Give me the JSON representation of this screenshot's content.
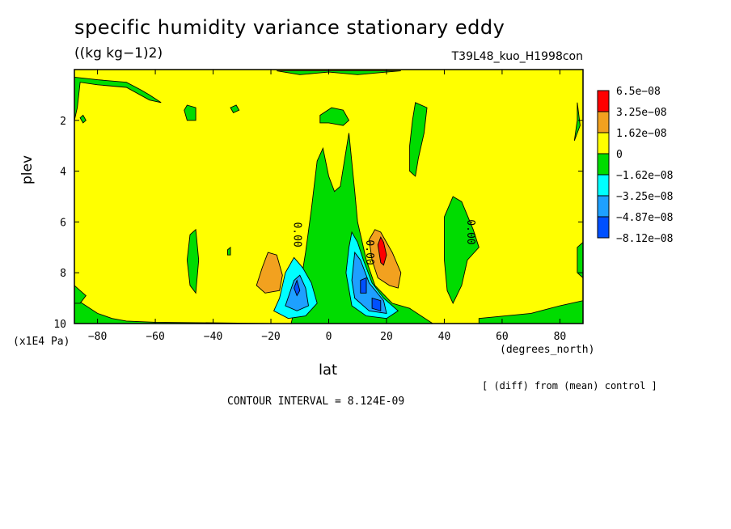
{
  "chart_data": {
    "type": "heatmap",
    "title": "specific humidity variance stationary eddy",
    "units": "((kg kg−1)2)",
    "run_label": "T39L48_kuo_H1998con",
    "xlabel": "lat",
    "x_unit": "(degrees_north)",
    "ylabel": "plev",
    "y_unit": "(x1E4 Pa)",
    "x_range": [
      -88,
      88
    ],
    "y_range": [
      0,
      10
    ],
    "y_inverted": true,
    "x_ticks": [
      -80,
      -60,
      -40,
      -20,
      0,
      20,
      40,
      60,
      80
    ],
    "y_ticks": [
      2,
      4,
      6,
      8,
      10
    ],
    "contour_interval_text": "CONTOUR INTERVAL = 8.124E-09",
    "note": "[ (diff) from (mean) control ]",
    "contour_labels": [
      {
        "text": "0.00",
        "x": -12,
        "y": 6.5
      },
      {
        "text": "0.00",
        "x": 13,
        "y": 7.2
      },
      {
        "text": "0.00",
        "x": 48,
        "y": 6.4
      }
    ],
    "legend": {
      "labels": [
        "6.5e−08",
        "3.25e−08",
        "1.62e−08",
        "0",
        "−1.62e−08",
        "−3.25e−08",
        "−4.87e−08",
        "−8.12e−08"
      ],
      "colors": [
        "#ff0000",
        "#f2a11f",
        "#ffff00",
        "#00dc00",
        "#00ffff",
        "#1ea0ff",
        "#0050ff"
      ]
    },
    "background_level_color": "#ffff00",
    "regions": [
      {
        "level": "0 to -1.62e-08",
        "color": "#00dc00",
        "points": [
          [
            -13,
            10
          ],
          [
            -10,
            8.6
          ],
          [
            -8,
            7.2
          ],
          [
            -6,
            5.5
          ],
          [
            -4,
            3.6
          ],
          [
            -2,
            3.1
          ],
          [
            0,
            4.2
          ],
          [
            2,
            4.8
          ],
          [
            4,
            4.6
          ],
          [
            6,
            3.2
          ],
          [
            7,
            2.5
          ],
          [
            9,
            4.8
          ],
          [
            10,
            6.0
          ],
          [
            13,
            7.5
          ],
          [
            16,
            8.5
          ],
          [
            22,
            9.2
          ],
          [
            28,
            9.4
          ],
          [
            32,
            9.7
          ],
          [
            36,
            10
          ]
        ]
      },
      {
        "level": "0 to -1.62e-08",
        "color": "#00dc00",
        "points": [
          [
            -88,
            9.0
          ],
          [
            -84,
            9.3
          ],
          [
            -80,
            9.6
          ],
          [
            -75,
            9.8
          ],
          [
            -70,
            9.9
          ],
          [
            -60,
            9.95
          ],
          [
            -40,
            9.97
          ],
          [
            -20,
            10
          ],
          [
            -88,
            10
          ]
        ]
      },
      {
        "level": "0 to -1.62e-08",
        "color": "#00dc00",
        "points": [
          [
            -3,
            1.8
          ],
          [
            1,
            1.5
          ],
          [
            5,
            1.6
          ],
          [
            7,
            2.0
          ],
          [
            5,
            2.2
          ],
          [
            0,
            2.1
          ],
          [
            -3,
            2.1
          ]
        ]
      },
      {
        "level": "0 to -1.62e-08",
        "color": "#00dc00",
        "points": [
          [
            -50,
            1.6
          ],
          [
            -49,
            1.4
          ],
          [
            -46,
            1.5
          ],
          [
            -46,
            2.0
          ],
          [
            -49,
            2.0
          ]
        ]
      },
      {
        "level": "0 to -1.62e-08",
        "color": "#00dc00",
        "points": [
          [
            -88,
            0.3
          ],
          [
            -80,
            0.4
          ],
          [
            -70,
            0.5
          ],
          [
            -65,
            0.8
          ],
          [
            -62,
            1.0
          ],
          [
            -58,
            1.3
          ],
          [
            -62,
            1.2
          ],
          [
            -70,
            0.7
          ],
          [
            -80,
            0.6
          ],
          [
            -86,
            0.5
          ],
          [
            -87,
            1.5
          ],
          [
            -88,
            2.0
          ]
        ]
      },
      {
        "level": "0 to -1.62e-08",
        "color": "#00dc00",
        "points": [
          [
            -18,
            0.05
          ],
          [
            -10,
            0.2
          ],
          [
            -5,
            0.15
          ],
          [
            0,
            0.1
          ],
          [
            5,
            0.15
          ],
          [
            10,
            0.2
          ],
          [
            20,
            0.1
          ],
          [
            25,
            0.05
          ]
        ]
      },
      {
        "level": "0 to -1.62e-08",
        "color": "#00dc00",
        "points": [
          [
            -34,
            1.5
          ],
          [
            -32,
            1.4
          ],
          [
            -31,
            1.6
          ],
          [
            -33,
            1.7
          ]
        ]
      },
      {
        "level": "0 to -1.62e-08",
        "color": "#00dc00",
        "points": [
          [
            -86,
            1.9
          ],
          [
            -85,
            1.8
          ],
          [
            -84,
            2.0
          ],
          [
            -85,
            2.1
          ]
        ]
      },
      {
        "level": "0 to -1.62e-08",
        "color": "#00dc00",
        "points": [
          [
            30,
            1.3
          ],
          [
            34,
            1.5
          ],
          [
            33,
            2.5
          ],
          [
            31,
            3.5
          ],
          [
            30,
            4.2
          ],
          [
            28,
            4.0
          ],
          [
            28,
            3.0
          ],
          [
            29,
            2.0
          ]
        ]
      },
      {
        "level": "0 to -1.62e-08",
        "color": "#00dc00",
        "points": [
          [
            40,
            5.8
          ],
          [
            43,
            5.0
          ],
          [
            46,
            5.2
          ],
          [
            50,
            6.3
          ],
          [
            52,
            7.0
          ],
          [
            48,
            7.5
          ],
          [
            46,
            8.5
          ],
          [
            43,
            9.2
          ],
          [
            41,
            8.7
          ],
          [
            40,
            7.5
          ]
        ]
      },
      {
        "level": "0 to -1.62e-08",
        "color": "#00dc00",
        "points": [
          [
            86,
            1.3
          ],
          [
            87,
            2.2
          ],
          [
            85,
            2.8
          ],
          [
            86,
            2.0
          ]
        ]
      },
      {
        "level": "0 to -1.62e-08",
        "color": "#00dc00",
        "points": [
          [
            -48,
            6.5
          ],
          [
            -46,
            6.3
          ],
          [
            -45,
            7.5
          ],
          [
            -46,
            8.8
          ],
          [
            -48,
            8.5
          ],
          [
            -49,
            7.5
          ]
        ]
      },
      {
        "level": "0 to -1.62e-08",
        "color": "#00dc00",
        "points": [
          [
            -35,
            7.1
          ],
          [
            -34,
            7.0
          ],
          [
            -34,
            7.3
          ],
          [
            -35,
            7.3
          ]
        ]
      },
      {
        "level": "0 to -1.62e-08",
        "color": "#00dc00",
        "points": [
          [
            -88,
            8.5
          ],
          [
            -86,
            8.7
          ],
          [
            -84,
            8.9
          ],
          [
            -86,
            9.2
          ],
          [
            -88,
            9.2
          ]
        ]
      },
      {
        "level": "0 to -1.62e-08",
        "color": "#00dc00",
        "points": [
          [
            86,
            7.0
          ],
          [
            88,
            6.8
          ],
          [
            88,
            8.2
          ],
          [
            86,
            8.0
          ]
        ]
      },
      {
        "level": "0 to -1.62e-08",
        "color": "#00dc00",
        "points": [
          [
            52,
            9.8
          ],
          [
            70,
            9.6
          ],
          [
            80,
            9.3
          ],
          [
            88,
            9.1
          ],
          [
            88,
            10
          ],
          [
            52,
            10
          ]
        ]
      },
      {
        "level": "-1.62e-08 to -3.25e-08",
        "color": "#00ffff",
        "points": [
          [
            -19,
            9.5
          ],
          [
            -17,
            9.0
          ],
          [
            -15,
            8.0
          ],
          [
            -12,
            7.4
          ],
          [
            -9,
            7.8
          ],
          [
            -6,
            8.4
          ],
          [
            -4,
            9.2
          ],
          [
            -8,
            9.7
          ],
          [
            -14,
            9.8
          ]
        ]
      },
      {
        "level": "-1.62e-08 to -3.25e-08",
        "color": "#00ffff",
        "points": [
          [
            6,
            8.0
          ],
          [
            7,
            7.0
          ],
          [
            8,
            6.4
          ],
          [
            10,
            6.8
          ],
          [
            12,
            7.5
          ],
          [
            15,
            8.4
          ],
          [
            19,
            9.0
          ],
          [
            24,
            9.5
          ],
          [
            20,
            9.8
          ],
          [
            13,
            9.7
          ],
          [
            8,
            9.3
          ]
        ]
      },
      {
        "level": "-3.25e-08 to -4.87e-08",
        "color": "#1ea0ff",
        "points": [
          [
            -15,
            9.3
          ],
          [
            -12,
            8.3
          ],
          [
            -10,
            8.1
          ],
          [
            -8,
            8.6
          ],
          [
            -7,
            9.3
          ],
          [
            -11,
            9.5
          ]
        ]
      },
      {
        "level": "-3.25e-08 to -4.87e-08",
        "color": "#1ea0ff",
        "points": [
          [
            8,
            8.3
          ],
          [
            9,
            7.2
          ],
          [
            11,
            7.5
          ],
          [
            14,
            8.4
          ],
          [
            19,
            9.1
          ],
          [
            20,
            9.6
          ],
          [
            14,
            9.5
          ],
          [
            9,
            9.0
          ]
        ]
      },
      {
        "level": "-4.87e-08 to -8.12e-08",
        "color": "#0050ff",
        "points": [
          [
            -12,
            8.6
          ],
          [
            -11,
            8.3
          ],
          [
            -10,
            8.7
          ],
          [
            -11,
            8.9
          ]
        ]
      },
      {
        "level": "-4.87e-08 to -8.12e-08",
        "color": "#0050ff",
        "points": [
          [
            11,
            8.3
          ],
          [
            13,
            8.2
          ],
          [
            13,
            8.8
          ],
          [
            11,
            8.8
          ]
        ]
      },
      {
        "level": "-4.87e-08 to -8.12e-08",
        "color": "#0050ff",
        "points": [
          [
            15,
            9.0
          ],
          [
            18,
            9.1
          ],
          [
            18,
            9.5
          ],
          [
            15,
            9.4
          ]
        ]
      },
      {
        "level": "1.62e-08 to 3.25e-08",
        "color": "#f2a11f",
        "points": [
          [
            -25,
            8.5
          ],
          [
            -23,
            7.8
          ],
          [
            -21,
            7.2
          ],
          [
            -18,
            7.3
          ],
          [
            -16,
            8.1
          ],
          [
            -17,
            8.7
          ],
          [
            -22,
            8.8
          ]
        ]
      },
      {
        "level": "1.62e-08 to 3.25e-08",
        "color": "#f2a11f",
        "points": [
          [
            14,
            6.7
          ],
          [
            16,
            6.3
          ],
          [
            18,
            6.4
          ],
          [
            22,
            7.2
          ],
          [
            25,
            8.0
          ],
          [
            24,
            8.6
          ],
          [
            21,
            8.5
          ],
          [
            17,
            8.2
          ],
          [
            15,
            7.5
          ]
        ]
      },
      {
        "level": "3.25e-08 to 6.5e-08",
        "color": "#ff0000",
        "points": [
          [
            17,
            6.9
          ],
          [
            18,
            6.6
          ],
          [
            19,
            6.8
          ],
          [
            20,
            7.3
          ],
          [
            19,
            7.7
          ],
          [
            18,
            7.6
          ]
        ]
      }
    ]
  }
}
